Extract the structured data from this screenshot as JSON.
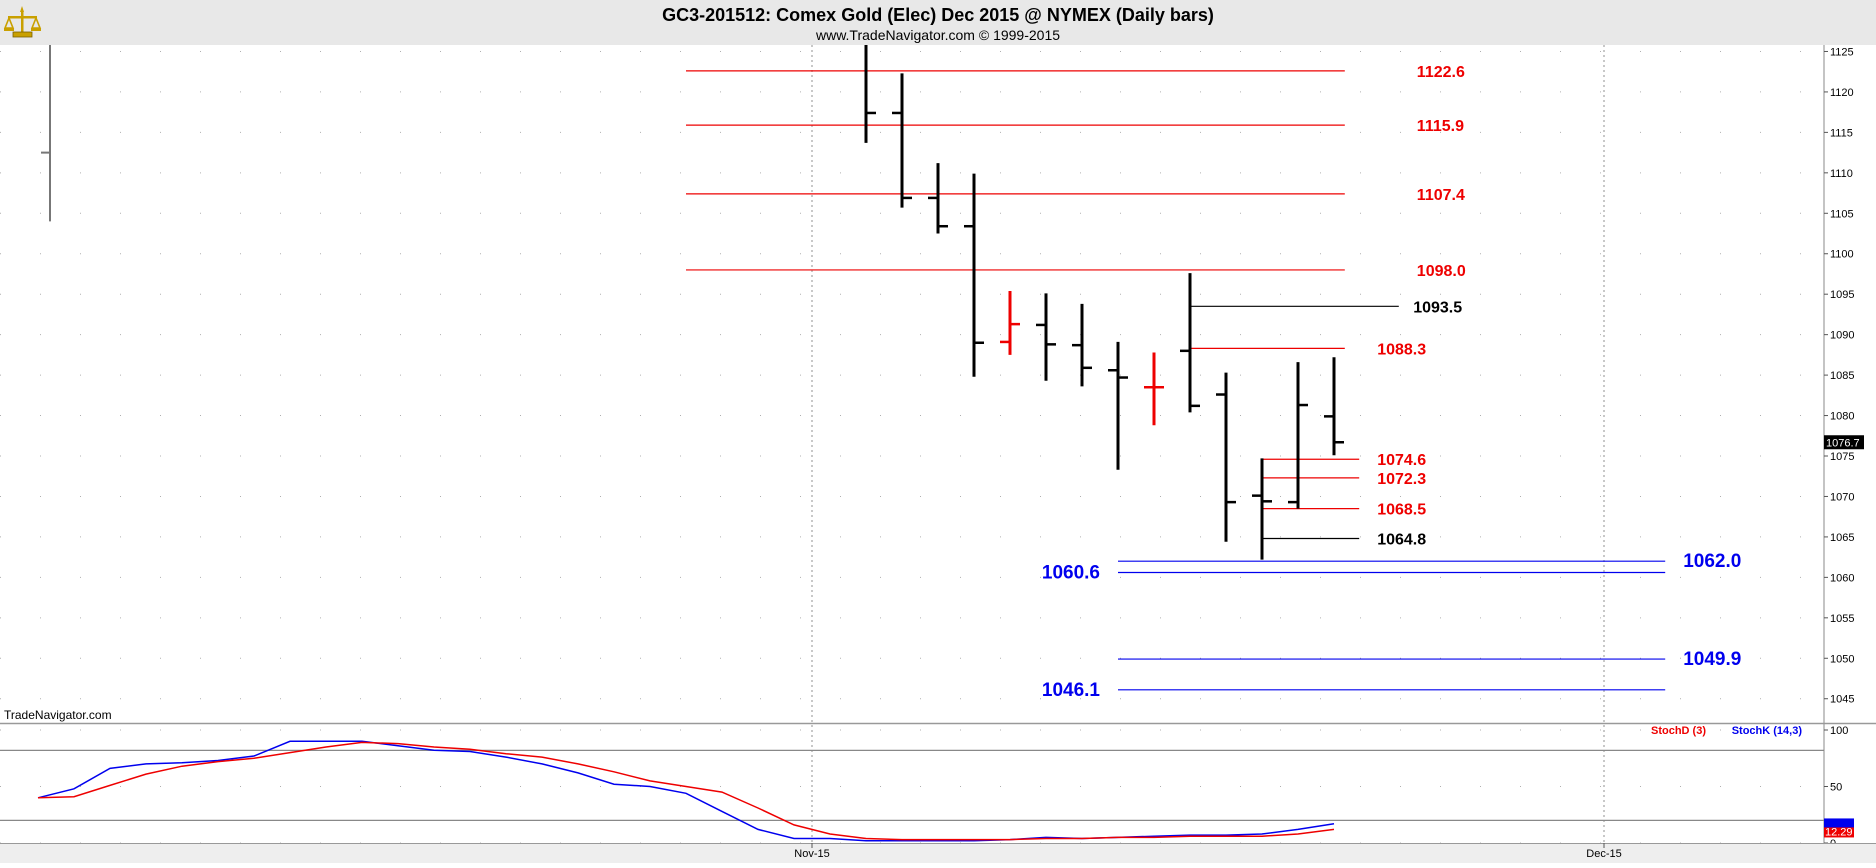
{
  "header": {
    "title": "GC3-201512:  Comex Gold (Elec) Dec 2015 @ NYMEX  (Daily bars)",
    "subtitle": "www.TradeNavigator.com © 1999-2015"
  },
  "watermark": "TradeNavigator.com",
  "icons": {
    "logo": "balance-scale-icon"
  },
  "colors": {
    "background": "#ffffff",
    "header_band": "#e8e8e8",
    "bars": "#000000",
    "reversal_bars": "#ee0000",
    "resistance_lines": "#ee0000",
    "support_lines": "#0000ee",
    "stoch_k": "#0000ee",
    "stoch_d": "#ee0000",
    "price_marker": "#000000"
  },
  "chart_data": [
    {
      "type": "ohlc",
      "ylim": [
        1042,
        1125.8
      ],
      "yticks": [
        1045,
        1050,
        1055,
        1060,
        1065,
        1070,
        1075,
        1080,
        1085,
        1090,
        1095,
        1100,
        1105,
        1110,
        1115,
        1120,
        1125
      ],
      "xlabels": [
        {
          "label": "Nov-15",
          "bar": 0
        },
        {
          "label": "Dec-15",
          "bar": 22
        }
      ],
      "grid": true,
      "last_price": "1076.7",
      "early_bar": {
        "bar": -22,
        "high": 1125.5,
        "low": 1104,
        "close": 1112.5
      },
      "bars": [
        {
          "bar": 1.5,
          "open": null,
          "high": 1126,
          "low": 1113.7,
          "close": 1117.4,
          "color": "black"
        },
        {
          "bar": 2.5,
          "open": 1117.4,
          "high": 1122.3,
          "low": 1105.7,
          "close": 1106.9,
          "color": "black"
        },
        {
          "bar": 3.5,
          "open": 1106.9,
          "high": 1111.2,
          "low": 1102.5,
          "close": 1103.4,
          "color": "black"
        },
        {
          "bar": 4.5,
          "open": 1103.4,
          "high": 1109.9,
          "low": 1084.8,
          "close": 1089,
          "color": "black"
        },
        {
          "bar": 5.5,
          "open": 1089.1,
          "high": 1095.4,
          "low": 1087.5,
          "close": 1091.3,
          "color": "red"
        },
        {
          "bar": 6.5,
          "open": 1091.2,
          "high": 1095.1,
          "low": 1084.3,
          "close": 1088.8,
          "color": "black"
        },
        {
          "bar": 7.5,
          "open": 1088.7,
          "high": 1093.8,
          "low": 1083.6,
          "close": 1085.9,
          "color": "black"
        },
        {
          "bar": 8.5,
          "open": 1085.6,
          "high": 1089.1,
          "low": 1073.3,
          "close": 1084.7,
          "color": "black"
        },
        {
          "bar": 9.5,
          "open": 1083.5,
          "high": 1087.8,
          "low": 1078.8,
          "close": 1083.5,
          "color": "red"
        },
        {
          "bar": 10.5,
          "open": 1088,
          "high": 1097.6,
          "low": 1080.4,
          "close": 1081.2,
          "color": "black"
        },
        {
          "bar": 11.5,
          "open": 1082.6,
          "high": 1085.3,
          "low": 1064.4,
          "close": 1069.3,
          "color": "black"
        },
        {
          "bar": 12.5,
          "open": 1070.1,
          "high": 1074.7,
          "low": 1062.2,
          "close": 1069.4,
          "color": "black"
        },
        {
          "bar": 13.5,
          "open": 1069.3,
          "high": 1086.6,
          "low": 1068.5,
          "close": 1081.3,
          "color": "black"
        },
        {
          "bar": 14.5,
          "open": 1079.9,
          "high": 1087.2,
          "low": 1075.1,
          "close": 1076.7,
          "color": "black"
        }
      ],
      "levels": [
        {
          "label": "1122.6",
          "value": 1122.6,
          "color": "red",
          "from_bar": -3.5,
          "to_bar": 14.8,
          "label_side": "right",
          "label_bar": 16.8
        },
        {
          "label": "1115.9",
          "value": 1115.9,
          "color": "red",
          "from_bar": -3.5,
          "to_bar": 14.8,
          "label_side": "right",
          "label_bar": 16.8
        },
        {
          "label": "1107.4",
          "value": 1107.4,
          "color": "red",
          "from_bar": -3.5,
          "to_bar": 14.8,
          "label_side": "right",
          "label_bar": 16.8
        },
        {
          "label": "1098.0",
          "value": 1098.0,
          "color": "red",
          "from_bar": -3.5,
          "to_bar": 14.8,
          "label_side": "right",
          "label_bar": 16.8
        },
        {
          "label": "1093.5",
          "value": 1093.5,
          "color": "black",
          "from_bar": 10.5,
          "to_bar": 16.3,
          "label_side": "right",
          "label_bar": 16.7
        },
        {
          "label": "1088.3",
          "value": 1088.3,
          "color": "red",
          "from_bar": 10.5,
          "to_bar": 14.8,
          "label_side": "right",
          "label_bar": 15.7
        },
        {
          "label": "1074.6",
          "value": 1074.6,
          "color": "red",
          "from_bar": 12.5,
          "to_bar": 15.2,
          "label_side": "right",
          "label_bar": 15.7
        },
        {
          "label": "1072.3",
          "value": 1072.3,
          "color": "red",
          "from_bar": 12.5,
          "to_bar": 15.2,
          "label_side": "right",
          "label_bar": 15.7
        },
        {
          "label": "1068.5",
          "value": 1068.5,
          "color": "red",
          "from_bar": 12.5,
          "to_bar": 15.2,
          "label_side": "right",
          "label_bar": 15.7
        },
        {
          "label": "1064.8",
          "value": 1064.8,
          "color": "black",
          "from_bar": 12.5,
          "to_bar": 15.2,
          "label_side": "right",
          "label_bar": 15.7
        },
        {
          "label": "1062.0",
          "value": 1062.0,
          "color": "blue",
          "from_bar": 8.5,
          "to_bar": 23.7,
          "label_side": "right",
          "label_bar": 24.2,
          "big": true
        },
        {
          "label": "1060.6",
          "value": 1060.6,
          "color": "blue",
          "from_bar": 8.5,
          "to_bar": 23.7,
          "label_side": "left",
          "label_bar": 8.0,
          "big": true
        },
        {
          "label": "1049.9",
          "value": 1049.9,
          "color": "blue",
          "from_bar": 8.5,
          "to_bar": 23.7,
          "label_side": "right",
          "label_bar": 24.2,
          "big": true
        },
        {
          "label": "1046.1",
          "value": 1046.1,
          "color": "blue",
          "from_bar": 8.5,
          "to_bar": 23.7,
          "label_side": "left",
          "label_bar": 8.0,
          "big": true
        }
      ]
    },
    {
      "type": "line",
      "ylim": [
        0,
        100
      ],
      "yticks": [
        0,
        50,
        100
      ],
      "hlines": [
        82,
        20
      ],
      "legend": [
        "StochD (3)",
        "StochK (14,3)"
      ],
      "last_value": "12.29",
      "x": [
        -21.5,
        -20.5,
        -19.5,
        -18.5,
        -17.5,
        -16.5,
        -15.5,
        -14.5,
        -13.5,
        -12.5,
        -11.5,
        -10.5,
        -9.5,
        -8.5,
        -7.5,
        -6.5,
        -5.5,
        -4.5,
        -3.5,
        -2.5,
        -1.5,
        -0.5,
        0.5,
        1.5,
        2.5,
        3.5,
        4.5,
        5.5,
        6.5,
        7.5,
        8.5,
        9.5,
        10.5,
        11.5,
        12.5,
        13.5,
        14.5
      ],
      "series": [
        {
          "name": "StochK (14,3)",
          "color": "blue",
          "values": [
            40,
            48,
            66,
            70,
            71,
            73,
            77,
            90,
            90,
            90,
            86,
            82,
            81,
            76,
            70,
            62,
            52,
            50,
            44,
            28,
            12,
            4,
            4,
            2,
            2,
            2,
            2,
            3,
            5,
            4,
            5,
            6,
            7,
            7,
            8,
            12,
            17
          ]
        },
        {
          "name": "StochD (3)",
          "color": "red",
          "values": [
            40,
            41,
            51,
            61,
            68,
            72,
            75,
            80,
            85,
            89,
            88,
            85,
            83,
            79,
            76,
            70,
            63,
            55,
            50,
            45,
            31,
            16,
            8,
            4,
            3,
            3,
            3,
            3,
            4,
            4,
            5,
            5,
            6,
            6,
            6,
            8,
            12
          ]
        }
      ]
    }
  ]
}
